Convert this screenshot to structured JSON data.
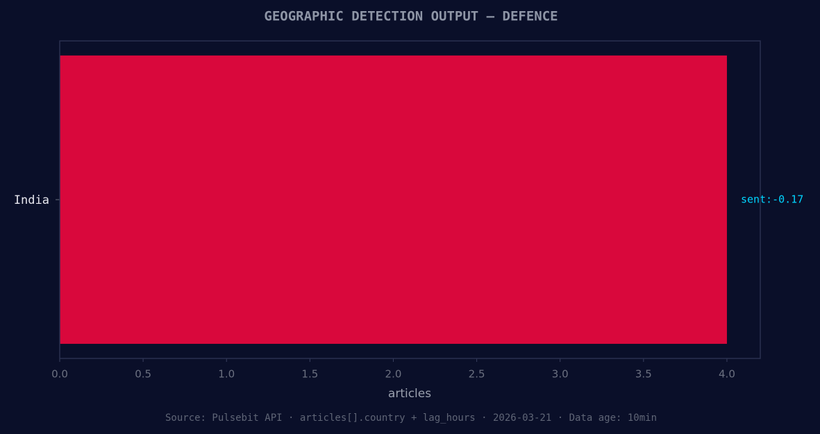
{
  "chart_data": {
    "type": "barh",
    "title": "GEOGRAPHIC DETECTION OUTPUT — DEFENCE",
    "categories": [
      "India"
    ],
    "values": [
      4
    ],
    "color": "#d9083c",
    "value_annotations": [
      "sent:-0.17"
    ],
    "xlabel": "articles",
    "xlim": [
      0,
      4.2
    ],
    "xticks": [
      {
        "value": 0,
        "label": "0.0"
      },
      0.5,
      {
        "value": 1,
        "label": "1.0"
      },
      1.5,
      {
        "value": 2,
        "label": "2.0"
      },
      2.5,
      {
        "value": 3,
        "label": "3.0"
      },
      3.5,
      {
        "value": 4,
        "label": "4.0"
      }
    ],
    "source": "Source: Pulsebit API · articles[].country + lag_hours · 2026-03-21 · Data age: 10min"
  }
}
